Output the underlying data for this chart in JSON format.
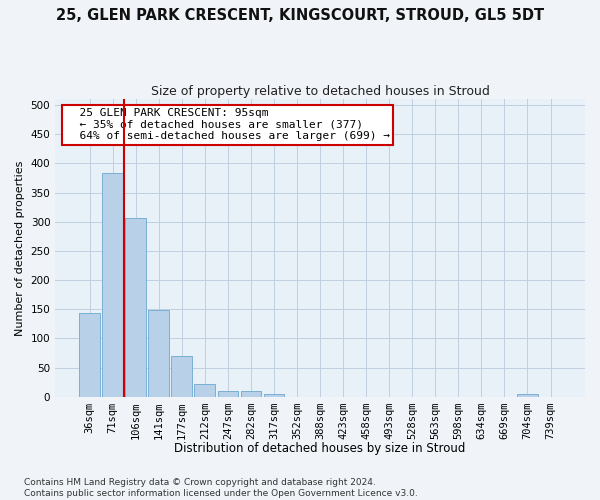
{
  "title_line1": "25, GLEN PARK CRESCENT, KINGSCOURT, STROUD, GL5 5DT",
  "title_line2": "Size of property relative to detached houses in Stroud",
  "xlabel": "Distribution of detached houses by size in Stroud",
  "ylabel": "Number of detached properties",
  "bar_color": "#b8d0e8",
  "bar_edge_color": "#7aafd4",
  "categories": [
    "36sqm",
    "71sqm",
    "106sqm",
    "141sqm",
    "177sqm",
    "212sqm",
    "247sqm",
    "282sqm",
    "317sqm",
    "352sqm",
    "388sqm",
    "423sqm",
    "458sqm",
    "493sqm",
    "528sqm",
    "563sqm",
    "598sqm",
    "634sqm",
    "669sqm",
    "704sqm",
    "739sqm"
  ],
  "values": [
    143,
    384,
    307,
    149,
    70,
    22,
    10,
    10,
    5,
    0,
    0,
    0,
    0,
    0,
    0,
    0,
    0,
    0,
    0,
    5,
    0
  ],
  "ylim": [
    0,
    510
  ],
  "yticks": [
    0,
    50,
    100,
    150,
    200,
    250,
    300,
    350,
    400,
    450,
    500
  ],
  "vline_x": 1.5,
  "vline_color": "#cc0000",
  "annotation_text": "  25 GLEN PARK CRESCENT: 95sqm\n  ← 35% of detached houses are smaller (377)\n  64% of semi-detached houses are larger (699) →",
  "annotation_fontsize": 8,
  "title1_fontsize": 10.5,
  "title2_fontsize": 9,
  "xlabel_fontsize": 8.5,
  "ylabel_fontsize": 8,
  "tick_fontsize": 7.5,
  "footer_text": "Contains HM Land Registry data © Crown copyright and database right 2024.\nContains public sector information licensed under the Open Government Licence v3.0.",
  "footer_fontsize": 6.5,
  "bg_color": "#f0f4f8",
  "plot_bg_color": "#e8f0f8",
  "grid_color": "#c0d0e0",
  "annotation_box_facecolor": "#ffffff",
  "annotation_box_edgecolor": "#cc0000",
  "bar_width": 0.9
}
